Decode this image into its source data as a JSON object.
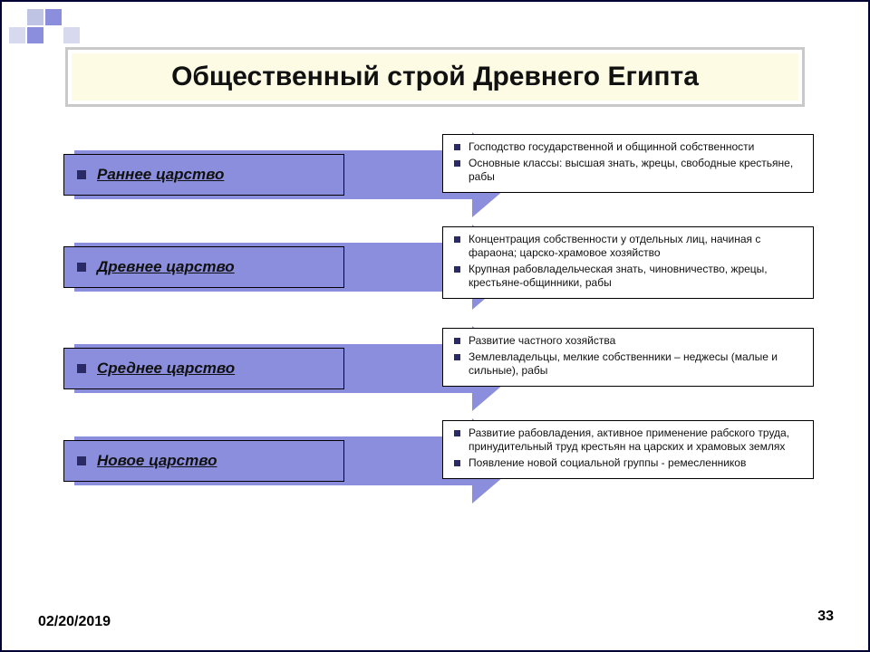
{
  "slide": {
    "title": "Общественный строй Древнего Египта",
    "title_bg": "#fdfbe3",
    "title_border": "#c9c9c9",
    "title_fontsize": 30,
    "arrow_color": "#8b8edc",
    "bullet_color": "#2a2a66",
    "frame_border": "#000033",
    "background": "#ffffff"
  },
  "deco": {
    "colors": [
      "#ffffff",
      "#bfc3e4",
      "#8b8edc",
      "#ffffff",
      "#d7d9ef",
      "#8b8edc",
      "#ffffff",
      "#d7d9ef"
    ],
    "cell_size": 18
  },
  "rows": [
    {
      "left": "Раннее царство",
      "right": [
        "Господство государственной и общинной собственности",
        "Основные классы: высшая знать, жрецы, свободные крестьяне, рабы"
      ]
    },
    {
      "left": "Древнее царство",
      "right": [
        "Концентрация собственности у отдельных лиц, начиная с фараона; царско-храмовое хозяйство",
        "Крупная рабовладельческая знать, чиновничество, жрецы, крестьяне-общинники, рабы"
      ]
    },
    {
      "left": "Среднее царство",
      "right": [
        "Развитие частного хозяйства",
        "Землевладельцы, мелкие собственники – неджесы (малые и сильные), рабы"
      ]
    },
    {
      "left": "Новое царство",
      "right": [
        "Развитие рабовладения, активное применение рабского труда, принудительный труд крестьян на царских и храмовых землях",
        "Появление новой социальной группы - ремесленников"
      ]
    }
  ],
  "footer": {
    "date": "02/20/2019",
    "page": "33"
  }
}
